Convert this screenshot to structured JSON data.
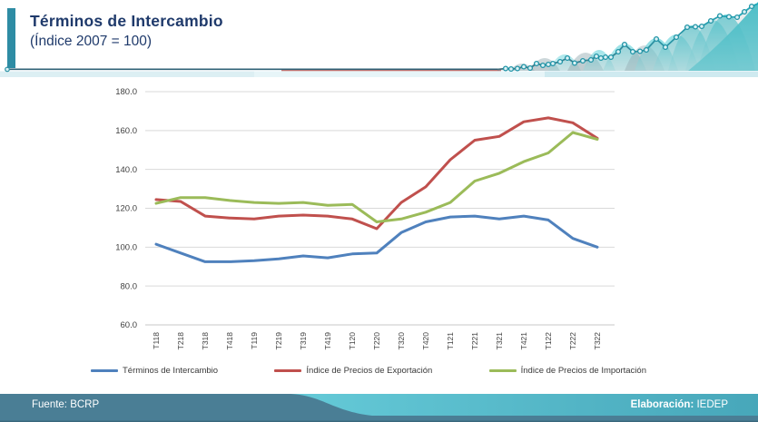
{
  "header": {
    "title": "Términos de Intercambio",
    "subtitle": "(Índice 2007 = 100)"
  },
  "footer": {
    "source": "Fuente: BCRP",
    "elaboration_label": "Elaboración:",
    "elaboration_value": "IEDEP"
  },
  "colors": {
    "accent_teal": "#2E8CA4",
    "title_navy": "#1F3A6B",
    "footer_dark": "#4A7E95",
    "footer_teal": "#4FB1C3",
    "gridline": "#D9D9D9",
    "axis_text": "#404040",
    "decor_teal": "#2BB3C0"
  },
  "chart_data": {
    "type": "line",
    "title": "Términos de Intercambio (Índice 2007 = 100)",
    "categories": [
      "T118",
      "T218",
      "T318",
      "T418",
      "T119",
      "T219",
      "T319",
      "T419",
      "T120",
      "T220",
      "T320",
      "T420",
      "T121",
      "T221",
      "T321",
      "T421",
      "T122",
      "T222",
      "T322"
    ],
    "series": [
      {
        "name": "Términos de Intercambio",
        "color": "#4F81BD",
        "values": [
          101.5,
          97,
          92.5,
          92.5,
          93,
          94,
          95.5,
          94.5,
          96.5,
          97,
          107.5,
          113,
          115.5,
          116,
          114.5,
          116,
          114,
          104.5,
          100
        ]
      },
      {
        "name": "Índice de Precios de Exportación",
        "color": "#C0504D",
        "values": [
          124.5,
          123.5,
          116,
          115,
          114.5,
          116,
          116.5,
          116,
          114.5,
          109.5,
          123,
          131,
          145,
          155,
          157,
          164.5,
          166.5,
          164,
          156
        ]
      },
      {
        "name": "Índice de Precios de Importación",
        "color": "#9BBB59",
        "values": [
          122.5,
          125.5,
          125.5,
          124,
          123,
          122.5,
          123,
          121.5,
          122,
          113,
          114.5,
          118,
          123,
          134,
          138,
          144,
          148.5,
          159,
          155.5
        ]
      }
    ],
    "xlabel": "",
    "ylabel": "",
    "ylim": [
      60,
      180
    ],
    "ytick_step": 20,
    "grid": true,
    "legend_position": "bottom"
  }
}
